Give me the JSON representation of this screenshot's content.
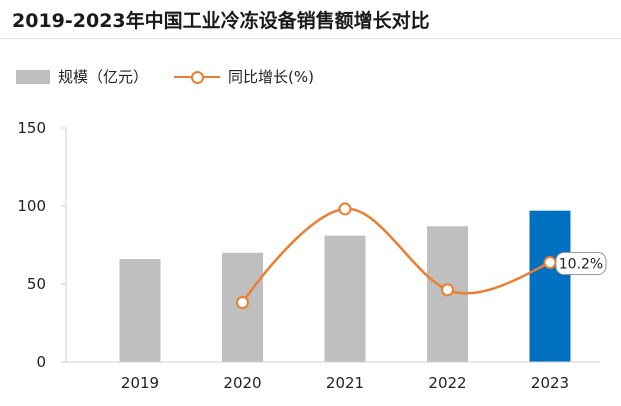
{
  "chart_data": {
    "type": "bar",
    "title": "2019-2023年中国工业冷冻设备销售额增长对比",
    "categories": [
      "2019",
      "2020",
      "2021",
      "2022",
      "2023"
    ],
    "series": [
      {
        "name": "规模（亿元）",
        "kind": "bar",
        "axis": "left",
        "values": [
          66,
          70,
          81,
          87,
          97
        ]
      },
      {
        "name": "同比增长(%)",
        "kind": "line",
        "axis": "right",
        "values": [
          null,
          6.1,
          15.7,
          7.4,
          10.2
        ]
      }
    ],
    "highlight_index": 4,
    "point_labels": {
      "4": "10.2%"
    },
    "yticks": [
      0,
      50,
      100,
      150
    ],
    "ylim": [
      0,
      150
    ],
    "y2lim": [
      0,
      24
    ],
    "colors": {
      "bar": "#bfbfbf",
      "highlight_bar": "#0070c0",
      "line": "#ed7d31"
    }
  }
}
